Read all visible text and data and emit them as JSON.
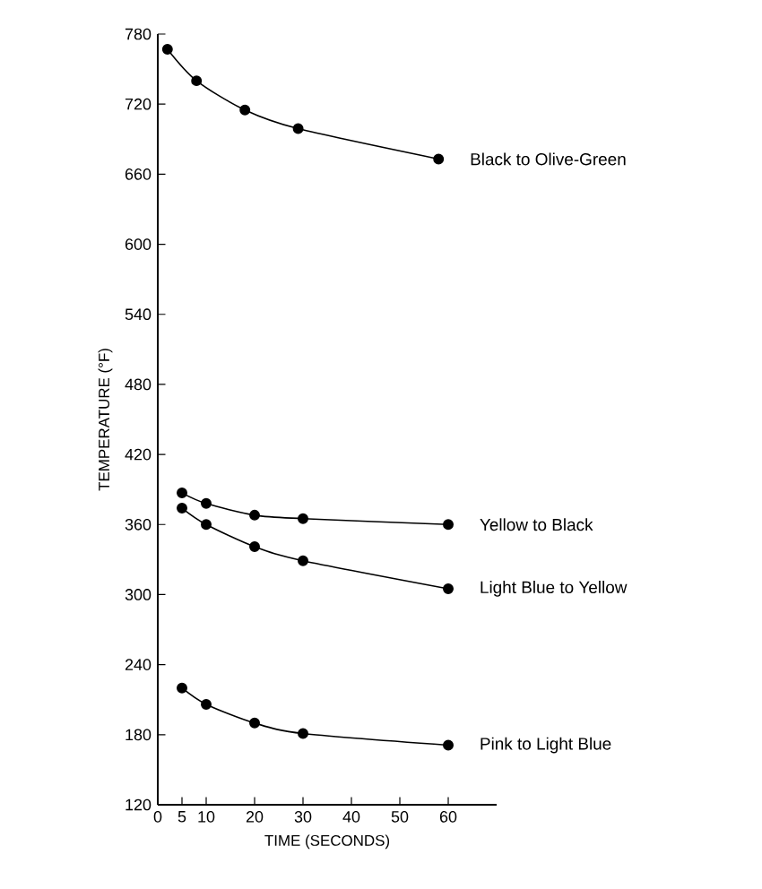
{
  "chart_data": {
    "type": "line",
    "xlabel": "TIME (SECONDS)",
    "ylabel": "TEMPERATURE (°F)",
    "xlim": [
      0,
      70
    ],
    "ylim": [
      120,
      780
    ],
    "xticks": [
      0,
      5,
      10,
      20,
      30,
      40,
      50,
      60
    ],
    "yticks": [
      120,
      180,
      240,
      300,
      360,
      420,
      480,
      540,
      600,
      660,
      720,
      780
    ],
    "marker": "circle",
    "line_style": "solid",
    "series": [
      {
        "name": "Black to Olive-Green",
        "color": "#000000",
        "x": [
          2,
          8,
          18,
          29,
          58
        ],
        "values": [
          767,
          740,
          715,
          699,
          673
        ]
      },
      {
        "name": "Yellow to Black",
        "color": "#000000",
        "x": [
          5,
          10,
          20,
          30,
          60
        ],
        "values": [
          387,
          378,
          368,
          365,
          360
        ]
      },
      {
        "name": "Light Blue to Yellow",
        "color": "#000000",
        "x": [
          5,
          10,
          20,
          30,
          60
        ],
        "values": [
          374,
          360,
          341,
          329,
          305
        ]
      },
      {
        "name": "Pink to Light Blue",
        "color": "#000000",
        "x": [
          5,
          10,
          20,
          30,
          60
        ],
        "values": [
          220,
          206,
          190,
          181,
          171
        ]
      }
    ]
  }
}
